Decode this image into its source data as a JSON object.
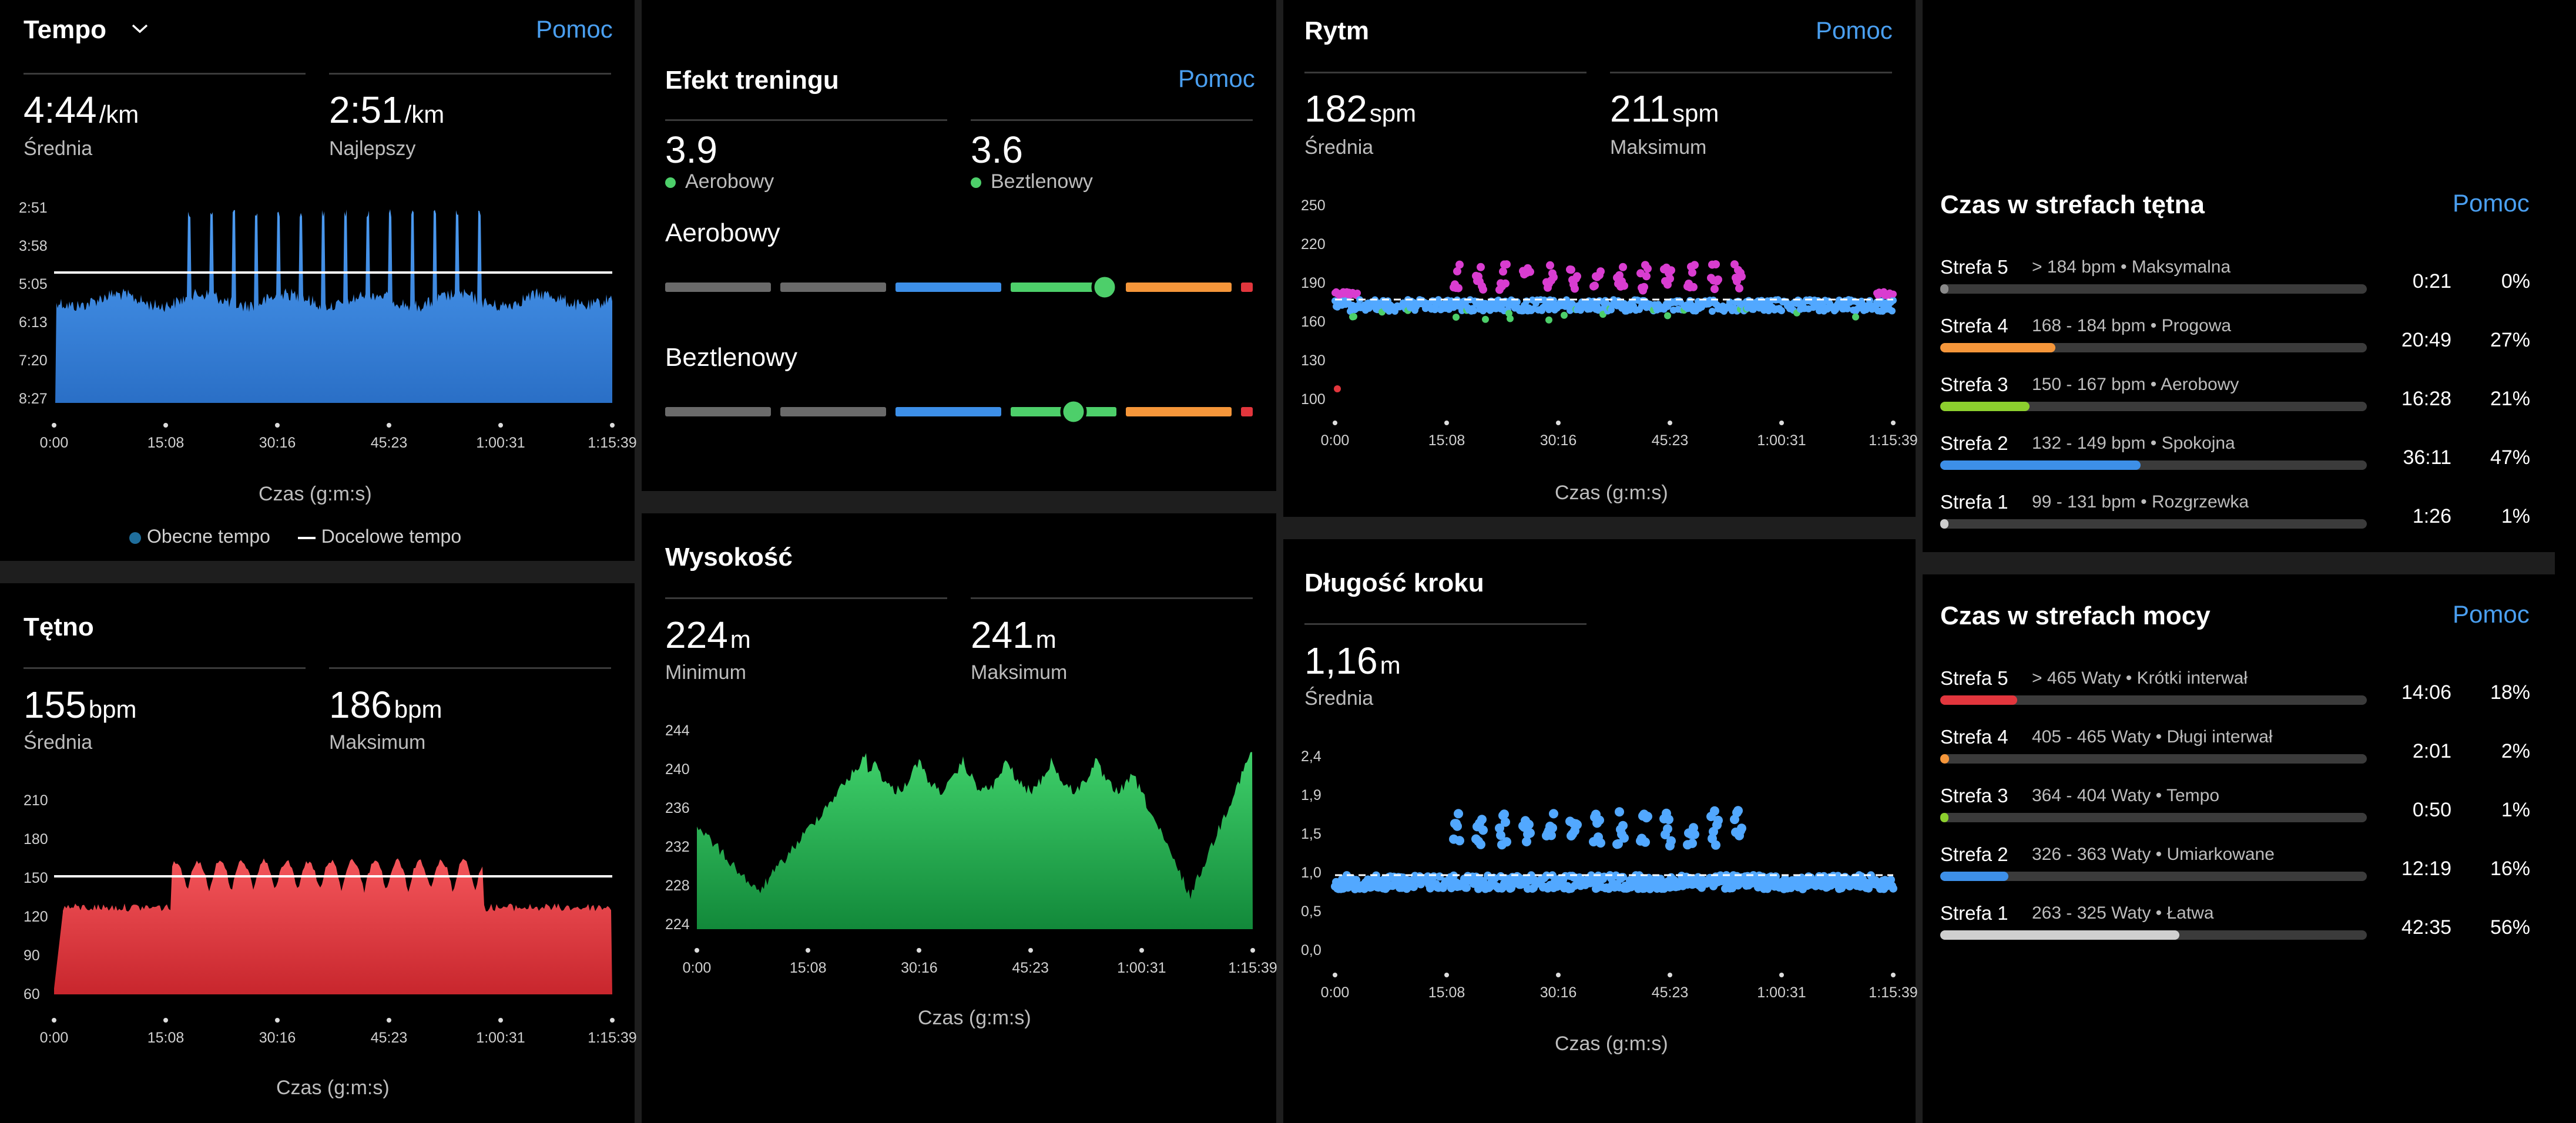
{
  "colors": {
    "pace_fill": "#3d8fe8",
    "hr_fill": "#e2363d",
    "alt_fill": "#1fa84a",
    "link": "#4a9ff0",
    "cad_magenta": "#d93dd0",
    "cad_blue": "#52a8ff",
    "cad_green": "#4dcf6a",
    "bar_gray": "#6a6a6a",
    "bar_blue": "#3d8fe8",
    "bar_green": "#4dcf6a",
    "bar_orange": "#f5963a",
    "bar_red": "#e2363d"
  },
  "icons": {
    "dropdown": "chevron-down-icon"
  },
  "help_label": "Pomoc",
  "time_axis": [
    "0:00",
    "15:08",
    "30:16",
    "45:23",
    "1:00:31",
    "1:15:39"
  ],
  "time_caption": "Czas (g:m:s)",
  "pace": {
    "title": "Tempo",
    "avg_value": "4:44",
    "avg_unit": "/km",
    "avg_label": "Średnia",
    "best_value": "2:51",
    "best_unit": "/km",
    "best_label": "Najlepszy",
    "y_ticks": [
      "2:51",
      "3:58",
      "5:05",
      "6:13",
      "7:20",
      "8:27"
    ],
    "legend_current": "Obecne tempo",
    "legend_target": "Docelowe tempo"
  },
  "hr": {
    "title": "Tętno",
    "avg_value": "155",
    "avg_unit": "bpm",
    "avg_label": "Średnia",
    "max_value": "186",
    "max_unit": "bpm",
    "max_label": "Maksimum",
    "y_ticks": [
      "210",
      "180",
      "150",
      "120",
      "90",
      "60"
    ]
  },
  "effect": {
    "title": "Efekt treningu",
    "aero_value": "3.9",
    "aero_label": "Aerobowy",
    "anaero_value": "3.6",
    "anaero_label": "Beztlenowy",
    "aero_title": "Aerobowy",
    "anaero_title": "Beztlenowy"
  },
  "altitude": {
    "title": "Wysokość",
    "min_value": "224",
    "min_unit": "m",
    "min_label": "Minimum",
    "max_value": "241",
    "max_unit": "m",
    "max_label": "Maksimum",
    "y_ticks": [
      "244",
      "240",
      "236",
      "232",
      "228",
      "224"
    ]
  },
  "cadence": {
    "title": "Rytm",
    "avg_value": "182",
    "avg_unit": "spm",
    "avg_label": "Średnia",
    "max_value": "211",
    "max_unit": "spm",
    "max_label": "Maksimum",
    "y_ticks": [
      "250",
      "220",
      "190",
      "160",
      "130",
      "100"
    ]
  },
  "stride": {
    "title": "Długość kroku",
    "avg_value": "1,16",
    "avg_unit": "m",
    "avg_label": "Średnia",
    "y_ticks": [
      "2,4",
      "1,9",
      "1,5",
      "1,0",
      "0,5",
      "0,0"
    ]
  },
  "hr_zones": {
    "title": "Czas w strefach tętna",
    "zones": [
      {
        "name": "Strefa 5",
        "desc": "> 184 bpm • Maksymalna",
        "time": "0:21",
        "pct": "0%",
        "fraction": 0.0,
        "color": "#8a8a8a"
      },
      {
        "name": "Strefa 4",
        "desc": "168 - 184 bpm • Progowa",
        "time": "20:49",
        "pct": "27%",
        "fraction": 0.27,
        "color": "#f5963a"
      },
      {
        "name": "Strefa 3",
        "desc": "150 - 167 bpm • Aerobowy",
        "time": "16:28",
        "pct": "21%",
        "fraction": 0.21,
        "color": "#8ccf2e"
      },
      {
        "name": "Strefa 2",
        "desc": "132 - 149 bpm • Spokojna",
        "time": "36:11",
        "pct": "47%",
        "fraction": 0.47,
        "color": "#3d8fe8"
      },
      {
        "name": "Strefa 1",
        "desc": "99 - 131 bpm • Rozgrzewka",
        "time": "1:26",
        "pct": "1%",
        "fraction": 0.01,
        "color": "#cfcfcf"
      }
    ]
  },
  "power_zones": {
    "title": "Czas w strefach mocy",
    "zones": [
      {
        "name": "Strefa 5",
        "desc": "> 465 Waty • Krótki interwał",
        "time": "14:06",
        "pct": "18%",
        "fraction": 0.18,
        "color": "#e2363d"
      },
      {
        "name": "Strefa 4",
        "desc": "405 - 465 Waty • Długi interwał",
        "time": "2:01",
        "pct": "2%",
        "fraction": 0.02,
        "color": "#f5963a"
      },
      {
        "name": "Strefa 3",
        "desc": "364 - 404 Waty • Tempo",
        "time": "0:50",
        "pct": "1%",
        "fraction": 0.01,
        "color": "#8ccf2e"
      },
      {
        "name": "Strefa 2",
        "desc": "326 - 363 Waty • Umiarkowane",
        "time": "12:19",
        "pct": "16%",
        "fraction": 0.16,
        "color": "#3d8fe8"
      },
      {
        "name": "Strefa 1",
        "desc": "263 - 325 Waty • Łatwa",
        "time": "42:35",
        "pct": "56%",
        "fraction": 0.56,
        "color": "#cfcfcf"
      }
    ]
  }
}
